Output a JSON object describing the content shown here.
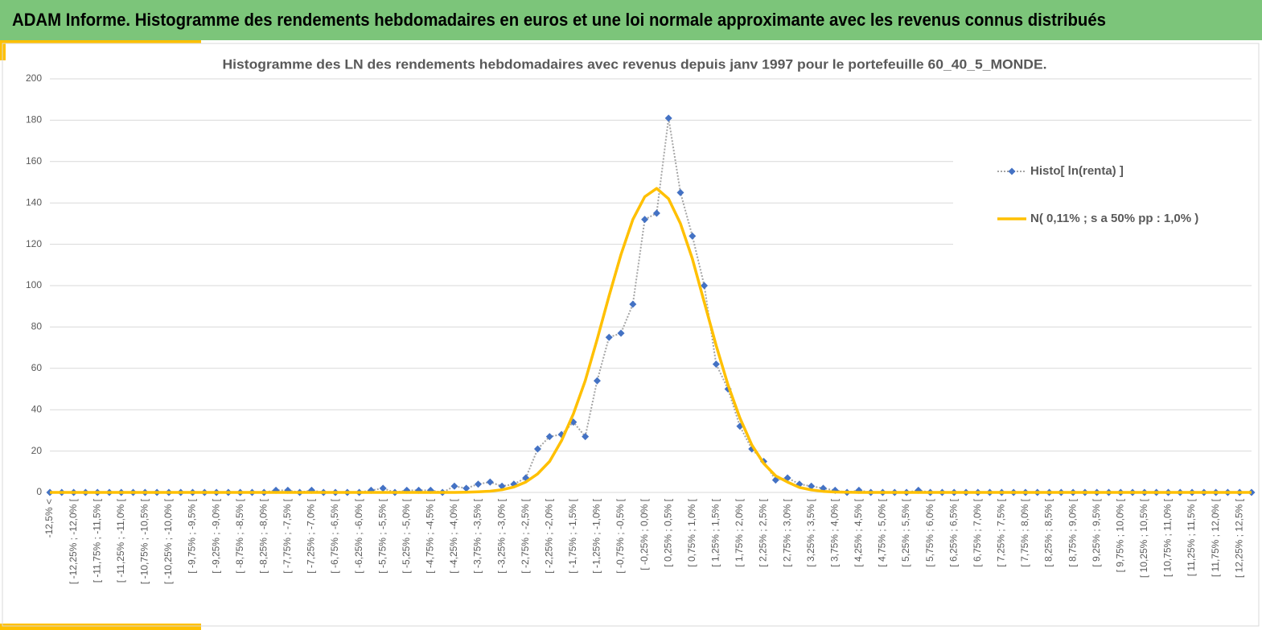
{
  "header": {
    "title": "ADAM Informe. Histogramme des rendements hebdomadaires en euros et une loi normale approximante avec les revenus connus distribués"
  },
  "chart_data": {
    "type": "line",
    "title": "Histogramme des LN des rendements hebdomadaires avec revenus depuis janv 1997 pour le portefeuille 60_40_5_MONDE.",
    "categories": [
      "-12,5% <",
      null,
      "[ -12,25% ; -12,0% [",
      null,
      "[ -11,75% ; -11,5% [",
      null,
      "[ -11,25% ; -11,0% [",
      null,
      "[ -10,75% ; -10,5% [",
      null,
      "[ -10,25% ; -10,0% [",
      null,
      "[ -9,75% ; -9,5% [",
      null,
      "[ -9,25% ; -9,0% [",
      null,
      "[ -8,75% ; -8,5% [",
      null,
      "[ -8,25% ; -8,0% [",
      null,
      "[ -7,75% ; -7,5% [",
      null,
      "[ -7,25% ; -7,0% [",
      null,
      "[ -6,75% ; -6,5% [",
      null,
      "[ -6,25% ; -6,0% [",
      null,
      "[ -5,75% ; -5,5% [",
      null,
      "[ -5,25% ; -5,0% [",
      null,
      "[ -4,75% ; -4,5% [",
      null,
      "[ -4,25% ; -4,0% [",
      null,
      "[ -3,75% ; -3,5% [",
      null,
      "[ -3,25% ; -3,0% [",
      null,
      "[ -2,75% ; -2,5% [",
      null,
      "[ -2,25% ; -2,0% [",
      null,
      "[ -1,75% ; -1,5% [",
      null,
      "[ -1,25% ; -1,0% [",
      null,
      "[ -0,75% ; -0,5% [",
      null,
      "[ -0,25% ; 0,0% [",
      null,
      "[ 0,25% ; 0,5% [",
      null,
      "[ 0,75% ; 1,0% [",
      null,
      "[ 1,25% ; 1,5% [",
      null,
      "[ 1,75% ; 2,0% [",
      null,
      "[ 2,25% ; 2,5% [",
      null,
      "[ 2,75% ; 3,0% [",
      null,
      "[ 3,25% ; 3,5% [",
      null,
      "[ 3,75% ; 4,0% [",
      null,
      "[ 4,25% ; 4,5% [",
      null,
      "[ 4,75% ; 5,0% [",
      null,
      "[ 5,25% ; 5,5% [",
      null,
      "[ 5,75% ; 6,0% [",
      null,
      "[ 6,25% ; 6,5% [",
      null,
      "[ 6,75% ; 7,0% [",
      null,
      "[ 7,25% ; 7,5% [",
      null,
      "[ 7,75% ; 8,0% [",
      null,
      "[ 8,25% ; 8,5% [",
      null,
      "[ 8,75% ; 9,0% [",
      null,
      "[ 9,25% ; 9,5% [",
      null,
      "[ 9,75% ; 10,0% [",
      null,
      "[ 10,25% ; 10,5% [",
      null,
      "[ 10,75% ; 11,0% [",
      null,
      "[ 11,25% ; 11,5% [",
      null,
      "[ 11,75% ; 12,0% [",
      null,
      "[ 12,25% ; 12,5% [",
      null
    ],
    "series": [
      {
        "name": "Histo[ ln(renta) ]",
        "color": "#4472c4",
        "line_color": "#a5a5a5",
        "marker": "diamond",
        "line_style": "dotted",
        "values": [
          0,
          0,
          0,
          0,
          0,
          0,
          0,
          0,
          0,
          0,
          0,
          0,
          0,
          0,
          0,
          0,
          0,
          0,
          0,
          1,
          1,
          0,
          1,
          0,
          0,
          0,
          0,
          1,
          2,
          0,
          1,
          1,
          1,
          0,
          3,
          2,
          4,
          5,
          3,
          4,
          7,
          21,
          27,
          28,
          34,
          27,
          54,
          75,
          77,
          91,
          132,
          135,
          181,
          145,
          124,
          100,
          62,
          50,
          32,
          21,
          15,
          6,
          7,
          4,
          3,
          2,
          1,
          0,
          1,
          0,
          0,
          0,
          0,
          1,
          0,
          0,
          0,
          0,
          0,
          0,
          0,
          0,
          0,
          0,
          0,
          0,
          0,
          0,
          0,
          0,
          0,
          0,
          0,
          0,
          0,
          0,
          0,
          0,
          0,
          0,
          0,
          0
        ]
      },
      {
        "name": "N( 0,11% ; s a 50% pp : 1,0% )",
        "color": "#ffc000",
        "marker": "none",
        "line_style": "solid",
        "values": [
          0,
          0,
          0,
          0,
          0,
          0,
          0,
          0,
          0,
          0,
          0,
          0,
          0,
          0,
          0,
          0,
          0,
          0,
          0,
          0,
          0,
          0,
          0,
          0,
          0,
          0,
          0,
          0,
          0,
          0,
          0,
          0,
          0,
          0,
          0,
          0.1,
          0.3,
          0.6,
          1.3,
          2.6,
          5,
          9,
          15,
          25,
          38,
          54,
          74,
          95,
          115,
          132,
          143,
          147,
          142,
          130,
          113,
          92,
          71,
          52,
          36,
          23,
          14,
          8,
          5,
          2.4,
          1.2,
          0.5,
          0.2,
          0.1,
          0,
          0,
          0,
          0,
          0,
          0,
          0,
          0,
          0,
          0,
          0,
          0,
          0,
          0,
          0,
          0,
          0,
          0,
          0,
          0,
          0,
          0,
          0,
          0,
          0,
          0,
          0,
          0,
          0,
          0,
          0,
          0,
          0,
          0
        ]
      }
    ],
    "ylim": [
      0,
      200
    ],
    "yticks": [
      0,
      20,
      40,
      60,
      80,
      100,
      120,
      140,
      160,
      180,
      200
    ],
    "grid": true,
    "legend": "right"
  }
}
